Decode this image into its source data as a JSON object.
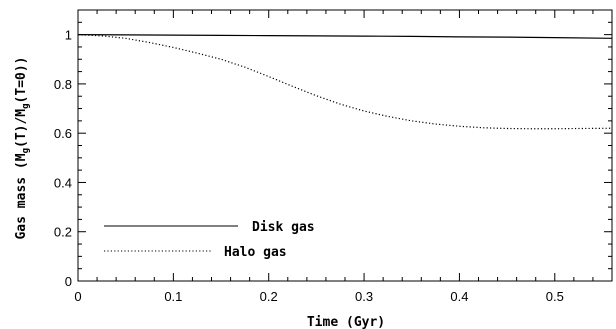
{
  "chart_data": {
    "type": "line",
    "xlabel": "Time (Gyr)",
    "ylabel_parts": {
      "pre": "Gas mass  (M",
      "sub1": "g",
      "mid": "(T)/M",
      "sub2": "g",
      "post": "(T=0))"
    },
    "xlim": [
      0,
      0.56
    ],
    "ylim": [
      0,
      1.1
    ],
    "xticks": [
      0,
      0.1,
      0.2,
      0.3,
      0.4,
      0.5
    ],
    "xtick_labels": [
      "0",
      "0.1",
      "0.2",
      "0.3",
      "0.4",
      "0.5"
    ],
    "yticks": [
      0,
      0.2,
      0.4,
      0.6,
      0.8,
      1
    ],
    "ytick_labels": [
      "0",
      "0.2",
      "0.4",
      "0.6",
      "0.8",
      "1"
    ],
    "grid": false,
    "legend_position": "bottom-left",
    "series": [
      {
        "name": "Disk gas",
        "style": "solid",
        "color": "#000000",
        "x": [
          0,
          0.05,
          0.1,
          0.15,
          0.2,
          0.25,
          0.3,
          0.35,
          0.4,
          0.45,
          0.5,
          0.56
        ],
        "y": [
          1.0,
          0.999,
          0.998,
          0.997,
          0.996,
          0.995,
          0.994,
          0.993,
          0.991,
          0.99,
          0.988,
          0.985
        ]
      },
      {
        "name": "Halo gas",
        "style": "dotted",
        "color": "#000000",
        "x": [
          0,
          0.025,
          0.05,
          0.075,
          0.1,
          0.125,
          0.15,
          0.175,
          0.2,
          0.225,
          0.25,
          0.275,
          0.3,
          0.325,
          0.35,
          0.375,
          0.4,
          0.425,
          0.45,
          0.475,
          0.5,
          0.525,
          0.56
        ],
        "y": [
          1.0,
          0.995,
          0.985,
          0.968,
          0.948,
          0.925,
          0.9,
          0.868,
          0.83,
          0.79,
          0.752,
          0.718,
          0.69,
          0.668,
          0.65,
          0.637,
          0.628,
          0.622,
          0.619,
          0.618,
          0.618,
          0.619,
          0.62
        ]
      }
    ]
  }
}
